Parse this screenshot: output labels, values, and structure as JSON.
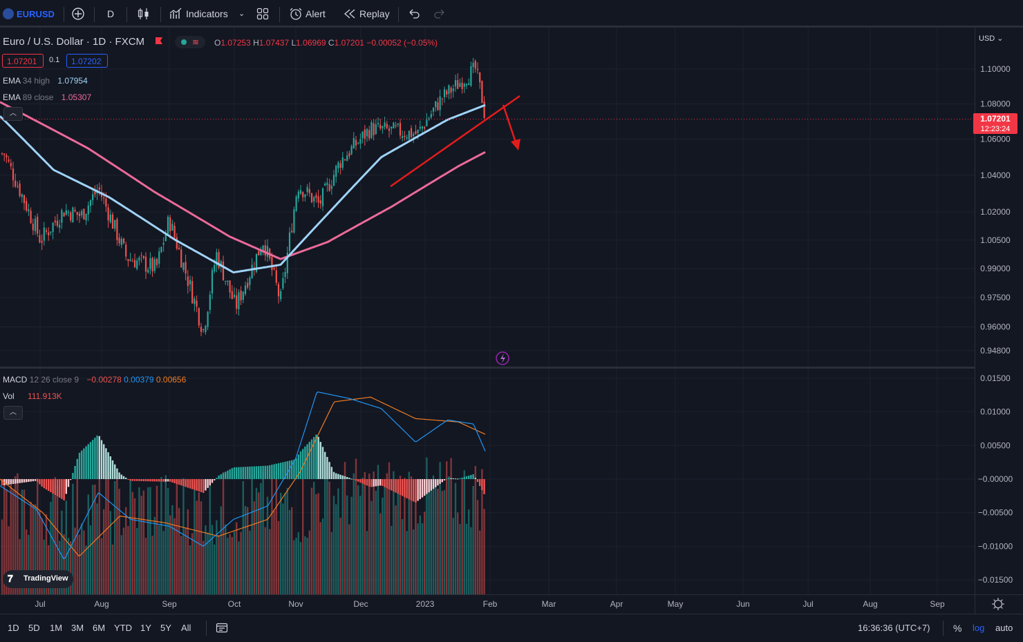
{
  "toolbar": {
    "symbol": "EURUSD",
    "interval": "D",
    "indicators_label": "Indicators",
    "alert_label": "Alert",
    "replay_label": "Replay"
  },
  "legend": {
    "title": "Euro / U.S. Dollar · 1D · FXCM",
    "o_label": "O",
    "o_val": "1.07253",
    "h_label": "H",
    "h_val": "1.07437",
    "l_label": "L",
    "l_val": "1.06969",
    "c_label": "C",
    "c_val": "1.07201",
    "change": "−0.00052 (−0.05%)",
    "bid": "1.07201",
    "spread": "0.1",
    "ask": "1.07202",
    "ema1_name": "EMA",
    "ema1_params": "34 high",
    "ema1_val": "1.07954",
    "ema2_name": "EMA",
    "ema2_params": "89 close",
    "ema2_val": "1.05307",
    "macd_name": "MACD",
    "macd_params": "12 26 close 9",
    "macd_v1": "−0.00278",
    "macd_v2": "0.00379",
    "macd_v3": "0.00656",
    "vol_name": "Vol",
    "vol_val": "111.913K",
    "logo_text": "TradingView"
  },
  "price_axis": {
    "currency": "USD",
    "ticks": [
      "1.10000",
      "1.08000",
      "1.06000",
      "1.04000",
      "1.02000",
      "1.00500",
      "0.99000",
      "0.97500",
      "0.96000",
      "0.94800"
    ],
    "last_price": "1.07201",
    "countdown": "12:23:24"
  },
  "macd_axis": {
    "ticks": [
      "0.01500",
      "0.01000",
      "0.00500",
      "−0.00000",
      "−0.00500",
      "−0.01000",
      "−0.01500"
    ]
  },
  "time_axis": {
    "labels": [
      "Jul",
      "Aug",
      "Sep",
      "Oct",
      "Nov",
      "Dec",
      "2023",
      "Feb",
      "Mar",
      "Apr",
      "May",
      "Jun",
      "Jul",
      "Aug",
      "Sep"
    ]
  },
  "bottombar": {
    "ranges": [
      "1D",
      "5D",
      "1M",
      "3M",
      "6M",
      "YTD",
      "1Y",
      "5Y",
      "All"
    ],
    "clock": "16:36:36 (UTC+7)",
    "pct": "%",
    "log": "log",
    "auto": "auto"
  },
  "colors": {
    "up": "#26a69a",
    "down": "#ef5350",
    "ema34": "#9fd3f7",
    "ema89": "#ec6a9a",
    "macd": "#2196f3",
    "signal": "#f07c22",
    "accent": "#2962ff",
    "trendline": "#e51c1c"
  },
  "chart_data": [
    {
      "type": "candlestick",
      "symbol": "EURUSD",
      "timeframe": "1D",
      "ylim": [
        0.948,
        1.1
      ],
      "x_labels": [
        "Jul",
        "Aug",
        "Sep",
        "Oct",
        "Nov",
        "Dec",
        "2023",
        "Feb",
        "Mar",
        "Apr",
        "May",
        "Jun",
        "Jul",
        "Aug",
        "Sep"
      ],
      "price_path": [
        {
          "x": "Jun 27",
          "y": 1.052
        },
        {
          "x": "Jul 5",
          "y": 1.03
        },
        {
          "x": "Jul 14",
          "y": 1.005
        },
        {
          "x": "Jul 25",
          "y": 1.021
        },
        {
          "x": "Aug 2",
          "y": 1.018
        },
        {
          "x": "Aug 10",
          "y": 1.033
        },
        {
          "x": "Aug 23",
          "y": 0.996
        },
        {
          "x": "Sep 6",
          "y": 0.99
        },
        {
          "x": "Sep 12",
          "y": 1.016
        },
        {
          "x": "Sep 28",
          "y": 0.958
        },
        {
          "x": "Oct 4",
          "y": 0.998
        },
        {
          "x": "Oct 13",
          "y": 0.97
        },
        {
          "x": "Oct 26",
          "y": 1.005
        },
        {
          "x": "Nov 3",
          "y": 0.973
        },
        {
          "x": "Nov 11",
          "y": 1.035
        },
        {
          "x": "Nov 21",
          "y": 1.024
        },
        {
          "x": "Dec 1",
          "y": 1.048
        },
        {
          "x": "Dec 15",
          "y": 1.066
        },
        {
          "x": "Jan 6",
          "y": 1.063
        },
        {
          "x": "Jan 17",
          "y": 1.083
        },
        {
          "x": "Feb 2",
          "y": 1.1
        },
        {
          "x": "Feb 7",
          "y": 1.072
        }
      ],
      "ema34_high": [
        {
          "x": "Jun 27",
          "y": 1.073
        },
        {
          "x": "Jul 20",
          "y": 1.043
        },
        {
          "x": "Aug 15",
          "y": 1.028
        },
        {
          "x": "Sep 15",
          "y": 1.005
        },
        {
          "x": "Oct 12",
          "y": 0.988
        },
        {
          "x": "Nov 3",
          "y": 0.992
        },
        {
          "x": "Nov 25",
          "y": 1.019
        },
        {
          "x": "Dec 20",
          "y": 1.05
        },
        {
          "x": "Jan 20",
          "y": 1.071
        },
        {
          "x": "Feb 7",
          "y": 1.0795
        }
      ],
      "ema89_close": [
        {
          "x": "Jun 27",
          "y": 1.081
        },
        {
          "x": "Aug 5",
          "y": 1.055
        },
        {
          "x": "Sep 5",
          "y": 1.031
        },
        {
          "x": "Oct 10",
          "y": 1.007
        },
        {
          "x": "Nov 3",
          "y": 0.995
        },
        {
          "x": "Nov 25",
          "y": 1.004
        },
        {
          "x": "Dec 25",
          "y": 1.023
        },
        {
          "x": "Jan 25",
          "y": 1.045
        },
        {
          "x": "Feb 7",
          "y": 1.0531
        }
      ],
      "last": 1.07201
    },
    {
      "type": "macd",
      "params": "12 26 close 9",
      "ylim": [
        -0.0165,
        0.0155
      ],
      "histogram_last": -0.00278,
      "macd_last": 0.00379,
      "signal_last": 0.00656,
      "macd_path": [
        {
          "x": "Jun 27",
          "y": -0.001
        },
        {
          "x": "Jul 12",
          "y": -0.0045
        },
        {
          "x": "Jul 25",
          "y": -0.012
        },
        {
          "x": "Aug 10",
          "y": -0.002
        },
        {
          "x": "Aug 25",
          "y": -0.006
        },
        {
          "x": "Sep 12",
          "y": -0.007
        },
        {
          "x": "Sep 28",
          "y": -0.01
        },
        {
          "x": "Oct 12",
          "y": -0.006
        },
        {
          "x": "Oct 28",
          "y": -0.004
        },
        {
          "x": "Nov 10",
          "y": 0.003
        },
        {
          "x": "Nov 20",
          "y": 0.013
        },
        {
          "x": "Dec 5",
          "y": 0.012
        },
        {
          "x": "Dec 20",
          "y": 0.0105
        },
        {
          "x": "Jan 5",
          "y": 0.0055
        },
        {
          "x": "Jan 20",
          "y": 0.0088
        },
        {
          "x": "Feb 1",
          "y": 0.0082
        },
        {
          "x": "Feb 7",
          "y": 0.0038
        }
      ],
      "signal_path": [
        {
          "x": "Jun 27",
          "y": 0.0
        },
        {
          "x": "Jul 15",
          "y": -0.005
        },
        {
          "x": "Aug 1",
          "y": -0.0115
        },
        {
          "x": "Aug 20",
          "y": -0.0055
        },
        {
          "x": "Sep 10",
          "y": -0.0065
        },
        {
          "x": "Oct 5",
          "y": -0.0085
        },
        {
          "x": "Oct 28",
          "y": -0.006
        },
        {
          "x": "Nov 12",
          "y": 0.001
        },
        {
          "x": "Nov 28",
          "y": 0.0115
        },
        {
          "x": "Dec 15",
          "y": 0.0122
        },
        {
          "x": "Jan 5",
          "y": 0.009
        },
        {
          "x": "Jan 25",
          "y": 0.0085
        },
        {
          "x": "Feb 7",
          "y": 0.0066
        }
      ]
    }
  ]
}
